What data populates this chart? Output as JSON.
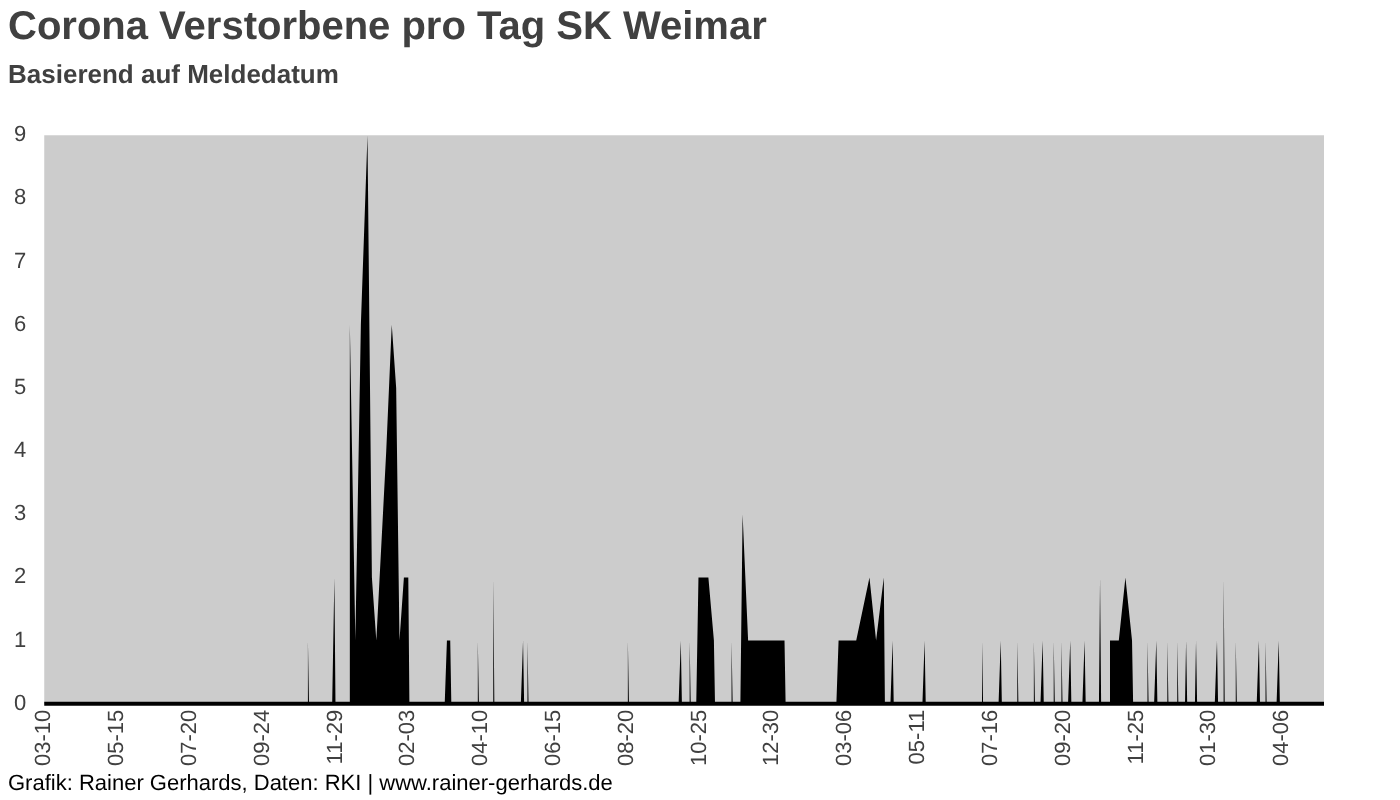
{
  "chart_data": {
    "type": "area",
    "title": "Corona Verstorbene pro Tag SK Weimar",
    "subtitle": "Basierend auf Meldedatum",
    "annotations": [
      "Grafik: Rainer Gerhards, Daten: RKI | www.rainer-gerhards.de"
    ],
    "categories": [
      "03-10",
      null,
      null,
      null,
      null,
      null,
      null,
      null,
      null,
      null,
      null,
      null,
      null,
      null,
      null,
      null,
      null,
      null,
      null,
      null,
      null,
      null,
      null,
      null,
      null,
      null,
      null,
      null,
      null,
      null,
      null,
      null,
      null,
      null,
      null,
      null,
      null,
      null,
      null,
      null,
      null,
      null,
      null,
      null,
      null,
      null,
      null,
      null,
      null,
      null,
      null,
      null,
      null,
      null,
      null,
      null,
      null,
      null,
      null,
      null,
      null,
      null,
      null,
      null,
      null,
      null,
      "05-15",
      null,
      null,
      null,
      null,
      null,
      null,
      null,
      null,
      null,
      null,
      null,
      null,
      null,
      null,
      null,
      null,
      null,
      null,
      null,
      null,
      null,
      null,
      null,
      null,
      null,
      null,
      null,
      null,
      null,
      null,
      null,
      null,
      null,
      null,
      null,
      null,
      null,
      null,
      null,
      null,
      null,
      null,
      null,
      null,
      null,
      null,
      null,
      null,
      null,
      null,
      null,
      null,
      null,
      null,
      null,
      null,
      null,
      null,
      null,
      null,
      null,
      null,
      null,
      null,
      null,
      "07-20",
      null,
      null,
      null,
      null,
      null,
      null,
      null,
      null,
      null,
      null,
      null,
      null,
      null,
      null,
      null,
      null,
      null,
      null,
      null,
      null,
      null,
      null,
      null,
      null,
      null,
      null,
      null,
      null,
      null,
      null,
      null,
      null,
      null,
      null,
      null,
      null,
      null,
      null,
      null,
      null,
      null,
      null,
      null,
      null,
      null,
      null,
      null,
      null,
      null,
      null,
      null,
      null,
      null,
      null,
      null,
      null,
      null,
      null,
      null,
      null,
      null,
      null,
      null,
      null,
      null,
      "09-24",
      null,
      null,
      null,
      null,
      null,
      null,
      null,
      null,
      null,
      null,
      null,
      null,
      null,
      null,
      null,
      null,
      null,
      null,
      null,
      null,
      null,
      null,
      null,
      null,
      null,
      null,
      null,
      null,
      null,
      null,
      null,
      null,
      null,
      null,
      null,
      null,
      null,
      null,
      null,
      null,
      null,
      null,
      null,
      null,
      null,
      null,
      null,
      null,
      null,
      null,
      null,
      null,
      null,
      null,
      null,
      null,
      null,
      null,
      null,
      null,
      null,
      null,
      null,
      null,
      null,
      "11-29",
      null,
      null,
      null,
      null,
      null,
      null,
      null,
      null,
      null,
      null,
      null,
      null,
      null,
      null,
      null,
      null,
      null,
      null,
      null,
      null,
      null,
      null,
      null,
      null,
      null,
      null,
      null,
      null,
      null,
      null,
      null,
      null,
      null,
      null,
      null,
      null,
      null,
      null,
      null,
      null,
      null,
      null,
      null,
      null,
      null,
      null,
      null,
      null,
      null,
      null,
      null,
      null,
      null,
      null,
      null,
      null,
      null,
      null,
      null,
      null,
      null,
      null,
      null,
      null,
      null,
      "02-03",
      null,
      null,
      null,
      null,
      null,
      null,
      null,
      null,
      null,
      null,
      null,
      null,
      null,
      null,
      null,
      null,
      null,
      null,
      null,
      null,
      null,
      null,
      null,
      null,
      null,
      null,
      null,
      null,
      null,
      null,
      null,
      null,
      null,
      null,
      null,
      null,
      null,
      null,
      null,
      null,
      null,
      null,
      null,
      null,
      null,
      null,
      null,
      null,
      null,
      null,
      null,
      null,
      null,
      null,
      null,
      null,
      null,
      null,
      null,
      null,
      null,
      null,
      null,
      null,
      null,
      "04-10",
      null,
      null,
      null,
      null,
      null,
      null,
      null,
      null,
      null,
      null,
      null,
      null,
      null,
      null,
      null,
      null,
      null,
      null,
      null,
      null,
      null,
      null,
      null,
      null,
      null,
      null,
      null,
      null,
      null,
      null,
      null,
      null,
      null,
      null,
      null,
      null,
      null,
      null,
      null,
      null,
      null,
      null,
      null,
      null,
      null,
      null,
      null,
      null,
      null,
      null,
      null,
      null,
      null,
      null,
      null,
      null,
      null,
      null,
      null,
      null,
      null,
      null,
      null,
      null,
      null,
      "06-15",
      null,
      null,
      null,
      null,
      null,
      null,
      null,
      null,
      null,
      null,
      null,
      null,
      null,
      null,
      null,
      null,
      null,
      null,
      null,
      null,
      null,
      null,
      null,
      null,
      null,
      null,
      null,
      null,
      null,
      null,
      null,
      null,
      null,
      null,
      null,
      null,
      null,
      null,
      null,
      null,
      null,
      null,
      null,
      null,
      null,
      null,
      null,
      null,
      null,
      null,
      null,
      null,
      null,
      null,
      null,
      null,
      null,
      null,
      null,
      null,
      null,
      null,
      null,
      null,
      null,
      "08-20",
      null,
      null,
      null,
      null,
      null,
      null,
      null,
      null,
      null,
      null,
      null,
      null,
      null,
      null,
      null,
      null,
      null,
      null,
      null,
      null,
      null,
      null,
      null,
      null,
      null,
      null,
      null,
      null,
      null,
      null,
      null,
      null,
      null,
      null,
      null,
      null,
      null,
      null,
      null,
      null,
      null,
      null,
      null,
      null,
      null,
      null,
      null,
      null,
      null,
      null,
      null,
      null,
      null,
      null,
      null,
      null,
      null,
      null,
      null,
      null,
      null,
      null,
      null,
      null,
      null,
      "10-25",
      null,
      null,
      null,
      null,
      null,
      null,
      null,
      null,
      null,
      null,
      null,
      null,
      null,
      null,
      null,
      null,
      null,
      null,
      null,
      null,
      null,
      null,
      null,
      null,
      null,
      null,
      null,
      null,
      null,
      null,
      null,
      null,
      null,
      null,
      null,
      null,
      null,
      null,
      null,
      null,
      null,
      null,
      null,
      null,
      null,
      null,
      null,
      null,
      null,
      null,
      null,
      null,
      null,
      null,
      null,
      null,
      null,
      null,
      null,
      null,
      null,
      null,
      null,
      null,
      null,
      "12-30",
      null,
      null,
      null,
      null,
      null,
      null,
      null,
      null,
      null,
      null,
      null,
      null,
      null,
      null,
      null,
      null,
      null,
      null,
      null,
      null,
      null,
      null,
      null,
      null,
      null,
      null,
      null,
      null,
      null,
      null,
      null,
      null,
      null,
      null,
      null,
      null,
      null,
      null,
      null,
      null,
      null,
      null,
      null,
      null,
      null,
      null,
      null,
      null,
      null,
      null,
      null,
      null,
      null,
      null,
      null,
      null,
      null,
      null,
      null,
      null,
      null,
      null,
      null,
      null,
      null,
      "03-06",
      null,
      null,
      null,
      null,
      null,
      null,
      null,
      null,
      null,
      null,
      null,
      null,
      null,
      null,
      null,
      null,
      null,
      null,
      null,
      null,
      null,
      null,
      null,
      null,
      null,
      null,
      null,
      null,
      null,
      null,
      null,
      null,
      null,
      null,
      null,
      null,
      null,
      null,
      null,
      null,
      null,
      null,
      null,
      null,
      null,
      null,
      null,
      null,
      null,
      null,
      null,
      null,
      null,
      null,
      null,
      null,
      null,
      null,
      null,
      null,
      null,
      null,
      null,
      null,
      null,
      "05-11",
      null,
      null,
      null,
      null,
      null,
      null,
      null,
      null,
      null,
      null,
      null,
      null,
      null,
      null,
      null,
      null,
      null,
      null,
      null,
      null,
      null,
      null,
      null,
      null,
      null,
      null,
      null,
      null,
      null,
      null,
      null,
      null,
      null,
      null,
      null,
      null,
      null,
      null,
      null,
      null,
      null,
      null,
      null,
      null,
      null,
      null,
      null,
      null,
      null,
      null,
      null,
      null,
      null,
      null,
      null,
      null,
      null,
      null,
      null,
      null,
      null,
      null,
      null,
      null,
      null,
      "07-16",
      null,
      null,
      null,
      null,
      null,
      null,
      null,
      null,
      null,
      null,
      null,
      null,
      null,
      null,
      null,
      null,
      null,
      null,
      null,
      null,
      null,
      null,
      null,
      null,
      null,
      null,
      null,
      null,
      null,
      null,
      null,
      null,
      null,
      null,
      null,
      null,
      null,
      null,
      null,
      null,
      null,
      null,
      null,
      null,
      null,
      null,
      null,
      null,
      null,
      null,
      null,
      null,
      null,
      null,
      null,
      null,
      null,
      null,
      null,
      null,
      null,
      null,
      null,
      null,
      null,
      "09-20",
      null,
      null,
      null,
      null,
      null,
      null,
      null,
      null,
      null,
      null,
      null,
      null,
      null,
      null,
      null,
      null,
      null,
      null,
      null,
      null,
      null,
      null,
      null,
      null,
      null,
      null,
      null,
      null,
      null,
      null,
      null,
      null,
      null,
      null,
      null,
      null,
      null,
      null,
      null,
      null,
      null,
      null,
      null,
      null,
      null,
      null,
      null,
      null,
      null,
      null,
      null,
      null,
      null,
      null,
      null,
      null,
      null,
      null,
      null,
      null,
      null,
      null,
      null,
      null,
      null,
      "11-25",
      null,
      null,
      null,
      null,
      null,
      null,
      null,
      null,
      null,
      null,
      null,
      null,
      null,
      null,
      null,
      null,
      null,
      null,
      null,
      null,
      null,
      null,
      null,
      null,
      null,
      null,
      null,
      null,
      null,
      null,
      null,
      null,
      null,
      null,
      null,
      null,
      null,
      null,
      null,
      null,
      null,
      null,
      null,
      null,
      null,
      null,
      null,
      null,
      null,
      null,
      null,
      null,
      null,
      null,
      null,
      null,
      null,
      null,
      null,
      null,
      null,
      null,
      null,
      null,
      null,
      "01-30",
      null,
      null,
      null,
      null,
      null,
      null,
      null,
      null,
      null,
      null,
      null,
      null,
      null,
      null,
      null,
      null,
      null,
      null,
      null,
      null,
      null,
      null,
      null,
      null,
      null,
      null,
      null,
      null,
      null,
      null,
      null,
      null,
      null,
      null,
      null,
      null,
      null,
      null,
      null,
      null,
      null,
      null,
      null,
      null,
      null,
      null,
      null,
      null,
      null,
      null,
      null,
      null,
      null,
      null,
      null,
      null,
      null,
      null,
      null,
      null,
      null,
      null,
      null,
      null,
      null,
      "04-06",
      null,
      null,
      null,
      null,
      null,
      null,
      null,
      null,
      null,
      null,
      null,
      null,
      null,
      null,
      null,
      null,
      null,
      null,
      null,
      null,
      null,
      null,
      null,
      null,
      null,
      null,
      null,
      null,
      null,
      null,
      null,
      null,
      null,
      null,
      null,
      null,
      null,
      null
    ],
    "series": [
      {
        "color": "#000000",
        "values": [
          0,
          0,
          0,
          0,
          0,
          0,
          0,
          0,
          0,
          0,
          0,
          0,
          0,
          0,
          0,
          0,
          0,
          0,
          0,
          0,
          0,
          0,
          0,
          0,
          0,
          0,
          0,
          0,
          0,
          0,
          0,
          0,
          0,
          0,
          0,
          0,
          0,
          0,
          0,
          0,
          0,
          0,
          0,
          0,
          0,
          0,
          0,
          0,
          0,
          0,
          0,
          0,
          0,
          0,
          0,
          0,
          0,
          0,
          0,
          0,
          0,
          0,
          0,
          0,
          0,
          0,
          0,
          0,
          0,
          0,
          0,
          0,
          0,
          0,
          0,
          0,
          0,
          0,
          0,
          0,
          0,
          0,
          0,
          0,
          0,
          0,
          0,
          0,
          0,
          0,
          0,
          0,
          0,
          0,
          0,
          0,
          0,
          0,
          0,
          0,
          0,
          0,
          0,
          0,
          0,
          0,
          0,
          0,
          0,
          0,
          0,
          0,
          0,
          0,
          0,
          0,
          0,
          0,
          0,
          0,
          0,
          0,
          0,
          0,
          0,
          0,
          0,
          0,
          0,
          0,
          0,
          0,
          0,
          0,
          0,
          0,
          0,
          0,
          0,
          0,
          0,
          0,
          0,
          0,
          0,
          0,
          0,
          0,
          0,
          0,
          0,
          0,
          0,
          0,
          0,
          0,
          0,
          0,
          0,
          0,
          0,
          0,
          0,
          0,
          0,
          0,
          0,
          0,
          0,
          0,
          0,
          0,
          0,
          0,
          0,
          0,
          0,
          0,
          0,
          0,
          0,
          0,
          0,
          0,
          0,
          0,
          0,
          0,
          0,
          0,
          0,
          0,
          0,
          0,
          0,
          0,
          0,
          0,
          0,
          0,
          0,
          0,
          0,
          0,
          0,
          0,
          0,
          0,
          0,
          0,
          0,
          0,
          0,
          0,
          0,
          0,
          0,
          0,
          0,
          0,
          0,
          0,
          0,
          0,
          0,
          0,
          0,
          0,
          0,
          0,
          0,
          0,
          0,
          0,
          0,
          0,
          0,
          0,
          0,
          1,
          0,
          0,
          0,
          0,
          0,
          0,
          0,
          0,
          0,
          0,
          0,
          0,
          0,
          0,
          0,
          0,
          0,
          0,
          0,
          0,
          0,
          0,
          0,
          2,
          0,
          0,
          0,
          0,
          0,
          0,
          0,
          0,
          0,
          0,
          0,
          0,
          0,
          6,
          null,
          null,
          null,
          null,
          1,
          null,
          null,
          null,
          null,
          6,
          null,
          null,
          null,
          null,
          null,
          9,
          null,
          null,
          null,
          2,
          null,
          null,
          null,
          1,
          null,
          null,
          null,
          null,
          null,
          3,
          null,
          null,
          4,
          null,
          null,
          null,
          null,
          6,
          null,
          null,
          null,
          5,
          null,
          null,
          1,
          null,
          null,
          null,
          2,
          null,
          null,
          null,
          2,
          0,
          0,
          0,
          0,
          0,
          0,
          0,
          0,
          0,
          0,
          0,
          0,
          0,
          0,
          0,
          0,
          0,
          0,
          0,
          0,
          0,
          0,
          0,
          0,
          0,
          0,
          0,
          0,
          0,
          0,
          0,
          0,
          0,
          0,
          1,
          null,
          null,
          1,
          0,
          0,
          0,
          0,
          0,
          0,
          0,
          0,
          0,
          0,
          0,
          0,
          0,
          0,
          0,
          0,
          0,
          0,
          0,
          0,
          0,
          0,
          0,
          0,
          1,
          0,
          0,
          0,
          0,
          0,
          0,
          0,
          0,
          0,
          0,
          0,
          0,
          0,
          2,
          0,
          0,
          0,
          0,
          0,
          0,
          0,
          0,
          0,
          0,
          0,
          0,
          0,
          0,
          0,
          0,
          0,
          0,
          0,
          0,
          0,
          0,
          0,
          0,
          0,
          0,
          1,
          0,
          0,
          0,
          1,
          0,
          0,
          0,
          0,
          0,
          0,
          0,
          0,
          0,
          0,
          0,
          0,
          0,
          0,
          0,
          0,
          0,
          0,
          0,
          0,
          0,
          0,
          0,
          0,
          0,
          0,
          0,
          0,
          0,
          0,
          0,
          0,
          0,
          0,
          0,
          0,
          0,
          0,
          0,
          0,
          0,
          0,
          0,
          0,
          0,
          0,
          0,
          0,
          0,
          0,
          0,
          0,
          0,
          0,
          0,
          0,
          0,
          0,
          0,
          0,
          0,
          0,
          0,
          0,
          0,
          0,
          0,
          0,
          0,
          0,
          0,
          0,
          0,
          0,
          0,
          0,
          0,
          0,
          0,
          0,
          0,
          0,
          0,
          0,
          0,
          0,
          0,
          0,
          0,
          0,
          1,
          0,
          0,
          0,
          0,
          0,
          0,
          0,
          0,
          0,
          0,
          0,
          0,
          0,
          0,
          0,
          0,
          0,
          0,
          0,
          0,
          0,
          0,
          0,
          0,
          0,
          0,
          0,
          0,
          0,
          0,
          0,
          0,
          0,
          0,
          0,
          0,
          0,
          0,
          0,
          0,
          0,
          0,
          0,
          0,
          0,
          0,
          0,
          1,
          0,
          0,
          0,
          0,
          0,
          0,
          0,
          1,
          0,
          0,
          0,
          0,
          0,
          0,
          0,
          2,
          null,
          null,
          null,
          null,
          null,
          null,
          null,
          null,
          2,
          null,
          null,
          null,
          null,
          1,
          0,
          0,
          0,
          0,
          0,
          0,
          0,
          0,
          0,
          0,
          0,
          0,
          0,
          0,
          0,
          1,
          0,
          0,
          0,
          0,
          0,
          0,
          0,
          0,
          0,
          3,
          null,
          null,
          null,
          null,
          1,
          null,
          null,
          null,
          null,
          null,
          null,
          null,
          1,
          null,
          null,
          null,
          null,
          null,
          1,
          null,
          null,
          null,
          null,
          null,
          1,
          null,
          null,
          null,
          null,
          null,
          1,
          null,
          null,
          null,
          null,
          null,
          null,
          1,
          0,
          0,
          0,
          0,
          0,
          0,
          0,
          0,
          0,
          0,
          0,
          0,
          0,
          0,
          0,
          0,
          0,
          0,
          0,
          0,
          0,
          0,
          0,
          0,
          0,
          0,
          0,
          0,
          0,
          0,
          0,
          0,
          0,
          0,
          0,
          0,
          0,
          0,
          0,
          0,
          0,
          0,
          0,
          0,
          0,
          0,
          0,
          0,
          1,
          null,
          null,
          null,
          null,
          null,
          null,
          null,
          1,
          null,
          null,
          null,
          null,
          null,
          null,
          null,
          1,
          null,
          null,
          null,
          null,
          null,
          null,
          null,
          null,
          null,
          null,
          null,
          2,
          null,
          null,
          null,
          null,
          null,
          1,
          null,
          null,
          null,
          null,
          null,
          null,
          2,
          0,
          0,
          0,
          0,
          0,
          0,
          0,
          1,
          0,
          0,
          0,
          0,
          0,
          0,
          0,
          0,
          0,
          0,
          0,
          0,
          0,
          0,
          0,
          0,
          0,
          0,
          0,
          0,
          0,
          0,
          0,
          0,
          0,
          0,
          0,
          0,
          1,
          0,
          0,
          0,
          0,
          0,
          0,
          0,
          0,
          0,
          0,
          0,
          0,
          0,
          0,
          0,
          0,
          0,
          0,
          0,
          0,
          0,
          0,
          0,
          0,
          0,
          0,
          0,
          0,
          0,
          0,
          0,
          0,
          0,
          0,
          0,
          0,
          0,
          0,
          0,
          0,
          0,
          0,
          0,
          0,
          0,
          0,
          0,
          0,
          0,
          0,
          0,
          1,
          0,
          0,
          0,
          0,
          0,
          0,
          0,
          0,
          0,
          0,
          0,
          0,
          0,
          0,
          0,
          0,
          1,
          0,
          0,
          0,
          0,
          0,
          0,
          0,
          0,
          0,
          0,
          0,
          0,
          0,
          0,
          1,
          0,
          0,
          0,
          0,
          0,
          0,
          0,
          0,
          0,
          0,
          0,
          0,
          0,
          0,
          1,
          0,
          0,
          0,
          0,
          0,
          0,
          0,
          1,
          0,
          0,
          0,
          0,
          0,
          0,
          0,
          0,
          0,
          1,
          0,
          0,
          0,
          0,
          0,
          0,
          1,
          0,
          0,
          0,
          0,
          0,
          0,
          0,
          1,
          0,
          0,
          0,
          0,
          0,
          0,
          0,
          0,
          0,
          0,
          0,
          0,
          1,
          0,
          0,
          0,
          0,
          0,
          0,
          0,
          0,
          0,
          0,
          0,
          0,
          0,
          2,
          0,
          0,
          0,
          0,
          0,
          0,
          0,
          0,
          1,
          null,
          null,
          null,
          null,
          null,
          null,
          null,
          1,
          null,
          null,
          null,
          null,
          null,
          2,
          null,
          null,
          null,
          null,
          null,
          1,
          0,
          0,
          0,
          0,
          0,
          0,
          0,
          0,
          0,
          0,
          0,
          0,
          0,
          1,
          0,
          0,
          0,
          0,
          0,
          0,
          0,
          1,
          0,
          0,
          0,
          0,
          0,
          0,
          0,
          0,
          0,
          1,
          0,
          0,
          0,
          0,
          0,
          0,
          0,
          0,
          1,
          0,
          0,
          0,
          0,
          0,
          0,
          0,
          1,
          0,
          0,
          0,
          0,
          0,
          0,
          0,
          0,
          1,
          0,
          0,
          0,
          0,
          0,
          0,
          0,
          0,
          0,
          0,
          0,
          0,
          0,
          0,
          0,
          0,
          0,
          0,
          1,
          0,
          0,
          0,
          0,
          0,
          2,
          0,
          0,
          0,
          0,
          0,
          0,
          0,
          0,
          0,
          0,
          1,
          0,
          0,
          0,
          0,
          0,
          0,
          0,
          0,
          0,
          0,
          0,
          0,
          0,
          0,
          0,
          0,
          0,
          0,
          0,
          0,
          1,
          0,
          0,
          0,
          0,
          0,
          1,
          0,
          0,
          0,
          0,
          0,
          0,
          0,
          0,
          0,
          0,
          0,
          1,
          0,
          0,
          0,
          0,
          0,
          0,
          0,
          0,
          0,
          0,
          0,
          0,
          0,
          0,
          0,
          0,
          0,
          0,
          0,
          0,
          0,
          0,
          0,
          0,
          0,
          0,
          0,
          0,
          0,
          0,
          0,
          0,
          0,
          0,
          0,
          0,
          0,
          0,
          0,
          0,
          0
        ]
      }
    ],
    "ylim": [
      0,
      9
    ],
    "yticks": [
      0,
      1,
      2,
      3,
      4,
      5,
      6,
      7,
      8,
      9
    ],
    "grid": false,
    "legend": false,
    "marker": "none",
    "line_style": "solid"
  }
}
